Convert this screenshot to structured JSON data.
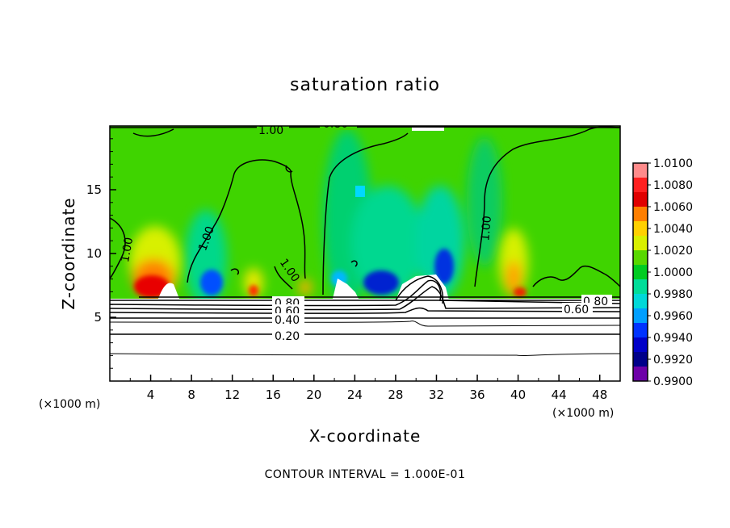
{
  "chart_data": {
    "type": "heatmap",
    "title": "saturation ratio",
    "xlabel": "X-coordinate",
    "ylabel": "Z-coordinate",
    "x_unit": "(×1000 m)",
    "z_unit": "(×1000 m)",
    "xlim": [
      0,
      50
    ],
    "ylim": [
      0,
      20
    ],
    "x_ticks": [
      "4",
      "8",
      "12",
      "16",
      "20",
      "24",
      "28",
      "32",
      "36",
      "40",
      "44",
      "48"
    ],
    "y_ticks": [
      "5",
      "10",
      "15"
    ],
    "colorbar": {
      "labels": [
        "1.0100",
        "1.0080",
        "1.0060",
        "1.0040",
        "1.0020",
        "1.0000",
        "0.9980",
        "0.9960",
        "0.9940",
        "0.9920",
        "0.9900"
      ],
      "colors": [
        "#ff8b8b",
        "#ff2020",
        "#e00000",
        "#ff7f00",
        "#ffd000",
        "#d8f000",
        "#58d800",
        "#00cc22",
        "#00dd99",
        "#00d8d8",
        "#009fff",
        "#0033ff",
        "#0000c8",
        "#00008a",
        "#6d00a8"
      ]
    },
    "contour_labels": [
      "0.80",
      "1.00",
      "1.00",
      "1.00",
      "1.00",
      "1.00",
      "0.80",
      "0.60",
      "0.40",
      "0.20",
      "0.80",
      "0.60"
    ],
    "features": [
      {
        "kind": "max",
        "x": 4.5,
        "z": 7.2,
        "value": 1.008
      },
      {
        "kind": "max",
        "x": 14.0,
        "z": 7.0,
        "value": 1.005
      },
      {
        "kind": "max",
        "x": 19.0,
        "z": 7.3,
        "value": 1.004
      },
      {
        "kind": "max",
        "x": 39.5,
        "z": 8.0,
        "value": 1.005
      },
      {
        "kind": "min",
        "x": 10.0,
        "z": 7.2,
        "value": 0.994
      },
      {
        "kind": "min",
        "x": 26.0,
        "z": 7.6,
        "value": 0.993
      },
      {
        "kind": "min",
        "x": 32.5,
        "z": 8.2,
        "value": 0.993
      },
      {
        "kind": "min",
        "x": 23.0,
        "z": 7.0,
        "value": 0.996
      }
    ],
    "grid": false,
    "legend": "colorbar-right"
  },
  "footer": "CONTOUR INTERVAL = 1.000E-01"
}
